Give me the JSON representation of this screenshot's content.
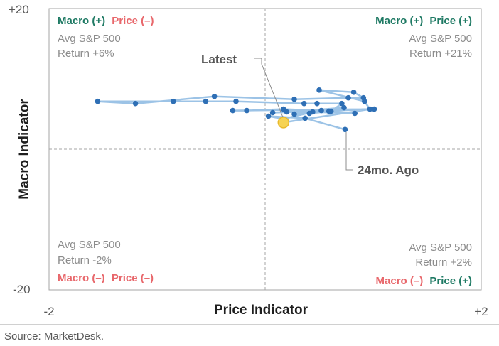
{
  "chart_data": {
    "type": "scatter",
    "title": "",
    "xlabel": "Price Indicator",
    "ylabel": "Macro Indicator",
    "xlim": [
      -2,
      2
    ],
    "ylim": [
      -20,
      20
    ],
    "x_ticks": [
      "-2",
      "+2"
    ],
    "y_ticks": [
      "+20",
      "-20"
    ],
    "grid": false,
    "reference_lines": {
      "x": 0,
      "y": 0,
      "style": "dashed"
    },
    "series_color": "#2e6fb5",
    "line_color": "#9cc3e6",
    "latest_color": "#f6d353",
    "points": [
      {
        "x": 0.74,
        "y": 2.8
      },
      {
        "x": 0.37,
        "y": 4.4
      },
      {
        "x": 0.03,
        "y": 4.7
      },
      {
        "x": 0.17,
        "y": 4.3
      },
      {
        "x": 0.44,
        "y": 5.3
      },
      {
        "x": 0.83,
        "y": 5.1
      },
      {
        "x": 0.59,
        "y": 5.4
      },
      {
        "x": 0.52,
        "y": 5.5
      },
      {
        "x": 0.17,
        "y": 5.7
      },
      {
        "x": -0.17,
        "y": 5.5
      },
      {
        "x": -0.3,
        "y": 5.5
      },
      {
        "x": 1.01,
        "y": 5.7
      },
      {
        "x": 0.07,
        "y": 5.2
      },
      {
        "x": 0.2,
        "y": 5.3
      },
      {
        "x": 0.73,
        "y": 5.9
      },
      {
        "x": 0.27,
        "y": 5.0
      },
      {
        "x": 0.41,
        "y": 5.1
      },
      {
        "x": 0.61,
        "y": 5.4
      },
      {
        "x": 0.71,
        "y": 6.5
      },
      {
        "x": 0.48,
        "y": 6.5
      },
      {
        "x": 0.36,
        "y": 6.5
      },
      {
        "x": -0.27,
        "y": 6.8
      },
      {
        "x": -0.55,
        "y": 6.8
      },
      {
        "x": -0.85,
        "y": 6.8
      },
      {
        "x": -1.55,
        "y": 6.8
      },
      {
        "x": -1.2,
        "y": 6.5
      },
      {
        "x": -0.47,
        "y": 7.5
      },
      {
        "x": 0.27,
        "y": 7.1
      },
      {
        "x": 0.77,
        "y": 7.3
      },
      {
        "x": 0.91,
        "y": 7.3
      },
      {
        "x": 0.82,
        "y": 8.1
      },
      {
        "x": 0.5,
        "y": 8.4
      },
      {
        "x": 0.92,
        "y": 6.8
      },
      {
        "x": 0.97,
        "y": 5.7
      },
      {
        "x": 0.17,
        "y": 3.8
      }
    ],
    "latest": {
      "x": 0.17,
      "y": 3.8,
      "label": "Latest"
    },
    "oldest": {
      "x": 0.74,
      "y": 2.8,
      "label": "24mo. Ago"
    },
    "quadrants": {
      "top_left": {
        "macro": "Macro (+)",
        "price": "Price (–)",
        "stat_label": "Avg S&P 500",
        "stat_value": "Return +6%"
      },
      "top_right": {
        "macro": "Macro (+)",
        "price": "Price (+)",
        "stat_label": "Avg S&P 500",
        "stat_value": "Return +21%"
      },
      "bottom_left": {
        "macro": "Macro (–)",
        "price": "Price (–)",
        "stat_label": "Avg S&P 500",
        "stat_value": "Return -2%"
      },
      "bottom_right": {
        "macro": "Macro (–)",
        "price": "Price (+)",
        "stat_label": "Avg S&P 500",
        "stat_value": "Return +2%"
      }
    },
    "positive_color": "#1f7a64",
    "negative_color": "#e8676b"
  },
  "source": "Source: MarketDesk."
}
